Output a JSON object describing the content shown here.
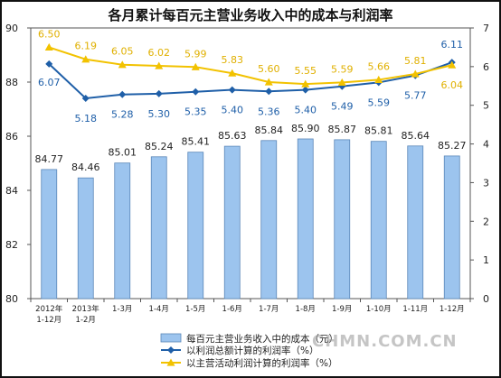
{
  "chart_data": {
    "type": "bar",
    "title": "各月累计每百元主营业务收入中的成本与利润率",
    "categories": [
      [
        "2012年",
        "1-12月"
      ],
      [
        "2013年",
        "1-2月"
      ],
      [
        "1-3月"
      ],
      [
        "1-4月"
      ],
      [
        "1-5月"
      ],
      [
        "1-6月"
      ],
      [
        "1-7月"
      ],
      [
        "1-8月"
      ],
      [
        "1-9月"
      ],
      [
        "1-10月"
      ],
      [
        "1-11月"
      ],
      [
        "1-12月"
      ]
    ],
    "left_axis": {
      "min": 80,
      "max": 90,
      "step": 2
    },
    "right_axis": {
      "min": 0,
      "max": 7,
      "step": 1
    },
    "grid": false,
    "legend_position": "bottom-center",
    "series": [
      {
        "name": "每百元主营业务收入中的成本（元）",
        "kind": "bar",
        "axis": "left",
        "color": "#9cc4ee",
        "values": [
          84.77,
          84.46,
          85.01,
          85.24,
          85.41,
          85.63,
          85.84,
          85.9,
          85.87,
          85.81,
          85.64,
          85.27
        ],
        "labels": [
          "84.77",
          "84.46",
          "85.01",
          "85.24",
          "85.41",
          "85.63",
          "85.84",
          "85.90",
          "85.87",
          "85.81",
          "85.64",
          "85.27"
        ]
      },
      {
        "name": "以利润总额计算的利润率（%）",
        "kind": "line",
        "axis": "right",
        "color": "#1f5fa8",
        "marker": "diamond",
        "values": [
          6.07,
          5.18,
          5.28,
          5.3,
          5.35,
          5.4,
          5.36,
          5.4,
          5.49,
          5.59,
          5.77,
          6.11
        ],
        "labels": [
          "6.07",
          "5.18",
          "5.28",
          "5.30",
          "5.35",
          "5.40",
          "5.36",
          "5.40",
          "5.49",
          "5.59",
          "5.77",
          "6.11"
        ]
      },
      {
        "name": "以主营活动利润计算的利润率（%）",
        "kind": "line",
        "axis": "right",
        "color": "#f2c200",
        "marker": "triangle",
        "values": [
          6.5,
          6.19,
          6.05,
          6.02,
          5.99,
          5.83,
          5.6,
          5.55,
          5.59,
          5.66,
          5.81,
          6.04
        ],
        "labels": [
          "6.50",
          "6.19",
          "6.05",
          "6.02",
          "5.99",
          "5.83",
          "5.60",
          "5.55",
          "5.59",
          "5.66",
          "5.81",
          "6.04"
        ]
      }
    ]
  },
  "watermark": "CHMN.COM.CN"
}
